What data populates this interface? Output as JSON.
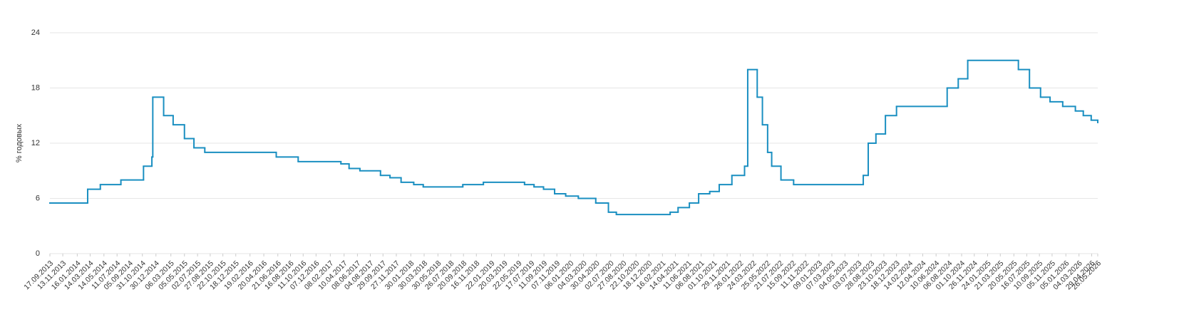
{
  "chart_data": {
    "type": "line",
    "step": true,
    "y_label": "% годовых",
    "color": "#1a8fc1",
    "x": [
      "17.09.2013",
      "03.03.2014",
      "28.04.2014",
      "28.07.2014",
      "05.11.2014",
      "12.12.2014",
      "16.12.2014",
      "02.02.2015",
      "16.03.2015",
      "05.05.2015",
      "16.06.2015",
      "03.08.2015",
      "14.06.2016",
      "19.09.2016",
      "27.03.2017",
      "02.05.2017",
      "19.06.2017",
      "18.09.2017",
      "30.10.2017",
      "18.12.2017",
      "12.02.2018",
      "26.03.2018",
      "17.09.2018",
      "17.12.2018",
      "17.06.2019",
      "29.07.2019",
      "09.09.2019",
      "28.10.2019",
      "16.12.2019",
      "10.02.2020",
      "27.04.2020",
      "22.06.2020",
      "27.07.2020",
      "22.03.2021",
      "26.04.2021",
      "15.06.2021",
      "26.07.2021",
      "13.09.2021",
      "25.10.2021",
      "20.12.2021",
      "14.02.2022",
      "28.02.2022",
      "11.04.2022",
      "04.05.2022",
      "27.05.2022",
      "14.06.2022",
      "25.07.2022",
      "19.09.2022",
      "24.07.2023",
      "15.08.2023",
      "18.09.2023",
      "30.10.2023",
      "18.12.2023",
      "29.07.2024",
      "16.09.2024",
      "28.10.2024",
      "09.06.2025",
      "28.07.2025",
      "15.09.2025",
      "27.10.2025",
      "22.12.2025",
      "16.02.2026",
      "23.03.2026",
      "27.04.2026",
      "26.05.2026"
    ],
    "values": [
      5.5,
      7,
      7.5,
      8,
      9.5,
      10.5,
      17,
      15,
      14,
      12.5,
      11.5,
      11,
      10.5,
      10,
      9.75,
      9.25,
      9,
      8.5,
      8.25,
      7.75,
      7.5,
      7.25,
      7.5,
      7.75,
      7.5,
      7.25,
      7,
      6.5,
      6.25,
      6,
      5.5,
      4.5,
      4.25,
      4.5,
      5,
      5.5,
      6.5,
      6.75,
      7.5,
      8.5,
      9.5,
      20,
      17,
      14,
      11,
      9.5,
      8,
      7.5,
      8.5,
      12,
      13,
      15,
      16,
      18,
      19,
      21,
      20,
      18,
      17,
      16.5,
      16,
      15.5,
      15,
      14.5,
      14.25
    ],
    "xlim": [
      "17.09.2013",
      "26.05.2026"
    ],
    "xticks": [
      "17.09.2013",
      "13.11.2013",
      "16.01.2014",
      "14.03.2014",
      "14.05.2014",
      "11.07.2014",
      "05.09.2014",
      "31.10.2014",
      "30.12.2014",
      "06.03.2015",
      "05.05.2015",
      "02.07.2015",
      "27.08.2015",
      "22.10.2015",
      "18.12.2015",
      "19.02.2016",
      "20.04.2016",
      "21.06.2016",
      "16.08.2016",
      "11.10.2016",
      "07.12.2016",
      "08.02.2017",
      "10.04.2017",
      "08.06.2017",
      "04.08.2017",
      "29.09.2017",
      "27.11.2017",
      "30.01.2018",
      "30.03.2018",
      "30.05.2018",
      "26.07.2018",
      "20.09.2018",
      "16.11.2018",
      "22.01.2019",
      "20.03.2019",
      "22.05.2019",
      "17.07.2019",
      "11.09.2019",
      "07.11.2019",
      "06.01.2020",
      "04.03.2020",
      "30.04.2020",
      "02.07.2020",
      "27.08.2020",
      "22.10.2020",
      "18.12.2020",
      "16.02.2021",
      "14.04.2021",
      "11.06.2021",
      "06.08.2021",
      "01.10.2021",
      "29.11.2021",
      "26.01.2022",
      "24.03.2022",
      "25.05.2022",
      "21.07.2022",
      "15.09.2022",
      "11.11.2022",
      "09.01.2023",
      "07.03.2023",
      "04.05.2023",
      "03.07.2023",
      "28.08.2023",
      "23.10.2023",
      "18.12.2023",
      "14.02.2024",
      "12.04.2024",
      "10.06.2024",
      "06.08.2024",
      "01.10.2024",
      "26.11.2024",
      "24.01.2025",
      "21.03.2025",
      "20.05.2025",
      "16.07.2025",
      "10.09.2025",
      "05.11.2025",
      "05.01.2026",
      "04.03.2026",
      "29.04.2026",
      "26.05.2026"
    ],
    "ylim": [
      0,
      24
    ],
    "yticks": [
      0,
      6,
      12,
      18,
      24
    ],
    "grid": true
  }
}
